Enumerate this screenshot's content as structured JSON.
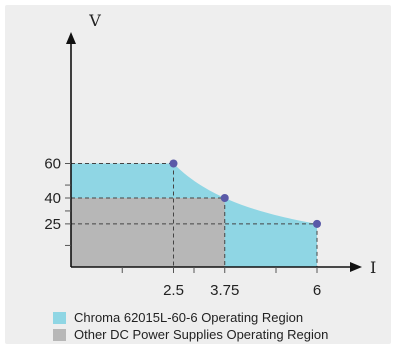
{
  "chart_data": {
    "type": "area",
    "xlabel": "I",
    "ylabel": "V",
    "xlim": [
      0,
      7
    ],
    "ylim": [
      0,
      75
    ],
    "x_ticks": [
      2.5,
      3.75,
      6
    ],
    "x_tick_labels": [
      "2.5",
      "3.75",
      "6"
    ],
    "x_minor_ticks": [
      1.25,
      2.5,
      3,
      3.75,
      5,
      6
    ],
    "y_ticks": [
      25,
      40,
      60
    ],
    "y_tick_labels": [
      "25",
      "40",
      "60"
    ],
    "y_minor_ticks": [
      12.5,
      25,
      32.5,
      40,
      47.5,
      60
    ],
    "series": [
      {
        "name": "Chroma 62015L-60-6 Operating Region",
        "color": "#8fd6e4",
        "boundary": "constant power curve",
        "x": [
          0,
          2.5,
          3.75,
          6
        ],
        "y": [
          60,
          60,
          40,
          25
        ]
      },
      {
        "name": "Other DC Power Supplies Operating Region",
        "color": "#b7b7b7",
        "boundary": "rectangle",
        "x": [
          0,
          3.75
        ],
        "y": [
          40,
          40
        ]
      }
    ],
    "points": [
      {
        "x": 2.5,
        "y": 60
      },
      {
        "x": 3.75,
        "y": 40
      },
      {
        "x": 6,
        "y": 25
      }
    ],
    "point_color": "#5a5aa8",
    "guide_style": "dashed",
    "legend_position": "bottom"
  }
}
